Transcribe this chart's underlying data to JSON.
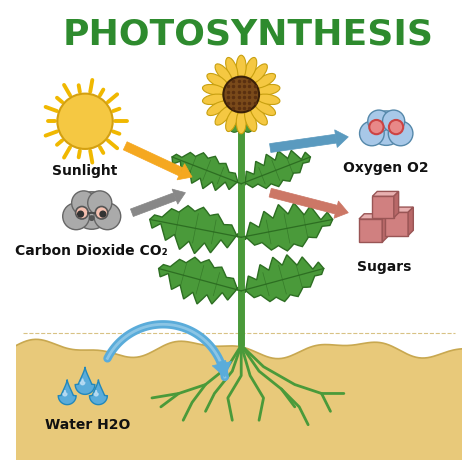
{
  "title": "PHOTOSYNTHESIS",
  "title_color": "#2e8b2e",
  "title_fontsize": 26,
  "bg_color": "#ffffff",
  "labels": {
    "sunlight": "Sunlight",
    "co2": "Carbon Dioxide CO₂",
    "water": "Water H2O",
    "oxygen": "Oxygen O2",
    "sugars": "Sugars"
  },
  "label_fontsize": 10,
  "soil_color": "#e8c97a",
  "soil_line_color": "#c8a850",
  "sun_color": "#f5c842",
  "sun_ray_color": "#f0b800",
  "cloud_co2_color": "#aaaaaa",
  "cloud_o2_color": "#a8c8e8",
  "water_drop_color": "#5aacda",
  "water_drop_highlight": "#c0e0f5",
  "stem_color": "#4a9a3a",
  "leaf_color": "#4a9a3a",
  "leaf_edge_color": "#2d6e22",
  "root_color": "#4a9a3a",
  "flower_petal_color": "#f5c842",
  "flower_petal_edge": "#c8a010",
  "flower_center_color": "#7a4a1a",
  "sugar_face_color": "#d08080",
  "sugar_top_color": "#e8b0b0",
  "sugar_side_color": "#b86868",
  "sugar_edge_color": "#995555",
  "arrow_sunlight_color": "#f5a820",
  "arrow_co2_color": "#888888",
  "arrow_o2_color": "#5a9abf",
  "arrow_sugar_color": "#cc7766",
  "arrow_water_color": "#5aacda"
}
